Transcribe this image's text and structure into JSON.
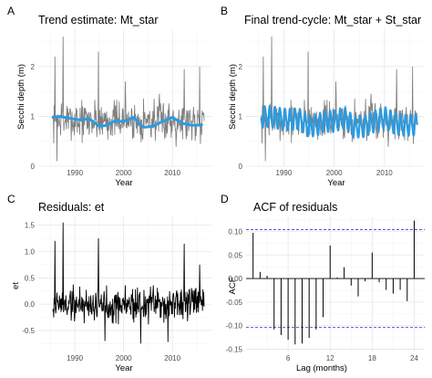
{
  "chart_data": [
    {
      "id": "A",
      "letter": "A",
      "type": "line",
      "title": "Trend estimate: Mt_star",
      "xlabel": "Year",
      "ylabel": "Secchi depth (m)",
      "xlim": [
        1982.5,
        2018
      ],
      "ylim": [
        0,
        2.75
      ],
      "xticks": [
        1990,
        2000,
        2010
      ],
      "yticks": [
        0,
        1,
        2
      ],
      "series": [
        {
          "role": "raw",
          "color": "#7f7f7f",
          "seed": 7,
          "start": 1985.5,
          "end": 2016.5,
          "base": 0.92,
          "amp": 0.35,
          "spikes": [
            [
              1987.6,
              2.6
            ],
            [
              1985.9,
              2.2
            ],
            [
              1994.8,
              2.3
            ],
            [
              2012.4,
              1.95
            ],
            [
              2015.6,
              2.0
            ],
            [
              2000.3,
              1.7
            ],
            [
              1986.3,
              0.1
            ]
          ]
        },
        {
          "role": "trend",
          "color": "#2b9be0",
          "x": [
            1985.5,
            1987,
            1989,
            1991,
            1993,
            1995,
            1996.5,
            1998,
            2000,
            2002,
            2004,
            2006,
            2008,
            2010,
            2012,
            2014,
            2016
          ],
          "y": [
            0.98,
            1.0,
            0.96,
            0.93,
            0.95,
            0.8,
            0.82,
            0.9,
            0.9,
            0.98,
            0.78,
            0.8,
            0.9,
            0.98,
            0.86,
            0.82,
            0.83
          ]
        }
      ]
    },
    {
      "id": "B",
      "letter": "B",
      "type": "line",
      "title": "Final trend-cycle: Mt_star + St_star",
      "xlabel": "Year",
      "ylabel": "Secchi depth (m)",
      "xlim": [
        1982.5,
        2018
      ],
      "ylim": [
        0,
        2.75
      ],
      "xticks": [
        1990,
        2000,
        2010
      ],
      "yticks": [
        0,
        1,
        2
      ],
      "series": [
        {
          "role": "raw",
          "color": "#7f7f7f",
          "seed": 7,
          "start": 1985.5,
          "end": 2016.5,
          "base": 0.92,
          "amp": 0.35,
          "spikes": [
            [
              1987.6,
              2.6
            ],
            [
              1985.9,
              2.2
            ],
            [
              1994.8,
              2.3
            ],
            [
              2012.4,
              1.95
            ],
            [
              2015.6,
              2.0
            ],
            [
              2000.3,
              1.7
            ],
            [
              1986.3,
              0.1
            ]
          ]
        },
        {
          "role": "seasonal",
          "color": "#2b9be0",
          "start": 1985.5,
          "end": 2016.5,
          "amp": 0.2,
          "trend_x": [
            1985.5,
            1987,
            1989,
            1991,
            1993,
            1995,
            1996.5,
            1998,
            2000,
            2002,
            2004,
            2006,
            2008,
            2010,
            2012,
            2014,
            2016
          ],
          "trend_y": [
            0.98,
            1.0,
            0.96,
            0.93,
            0.95,
            0.8,
            0.82,
            0.9,
            0.9,
            0.98,
            0.78,
            0.8,
            0.9,
            0.98,
            0.86,
            0.82,
            0.83
          ]
        }
      ]
    },
    {
      "id": "C",
      "letter": "C",
      "type": "line",
      "title": "Residuals: et",
      "xlabel": "Year",
      "ylabel": "et",
      "xlim": [
        1982.5,
        2018
      ],
      "ylim": [
        -0.9,
        1.65
      ],
      "xticks": [
        1990,
        2000,
        2010
      ],
      "yticks": [
        -0.5,
        0.0,
        0.5,
        1.0,
        1.5
      ],
      "yticklabels": [
        "-0.5",
        "0.0",
        "0.5",
        "1.0",
        "1.5"
      ],
      "series": [
        {
          "role": "resid",
          "color": "#000000",
          "seed": 19,
          "start": 1985.5,
          "end": 2016.5,
          "amp": 0.27,
          "spikes": [
            [
              1987.6,
              1.55
            ],
            [
              1985.9,
              1.2
            ],
            [
              1994.8,
              1.25
            ],
            [
              2012.4,
              1.15
            ],
            [
              2015.6,
              0.75
            ],
            [
              2003.5,
              -0.75
            ],
            [
              1996.2,
              -0.7
            ],
            [
              2009.1,
              -0.72
            ]
          ]
        }
      ]
    },
    {
      "id": "D",
      "letter": "D",
      "type": "bar",
      "title": "ACF of residuals",
      "xlabel": "Lag (months)",
      "ylabel": "ACF",
      "xlim": [
        0,
        25.5
      ],
      "ylim": [
        -0.155,
        0.13
      ],
      "xticks": [
        6,
        12,
        18,
        24
      ],
      "yticks": [
        -0.15,
        -0.1,
        -0.05,
        0.0,
        0.05,
        0.1
      ],
      "yticklabels": [
        "-0.15",
        "-0.10",
        "-0.05",
        "0.00",
        "0.05",
        "0.10"
      ],
      "ci": 0.104,
      "lags": [
        1,
        2,
        3,
        4,
        5,
        6,
        7,
        8,
        9,
        10,
        11,
        12,
        13,
        14,
        15,
        16,
        17,
        18,
        19,
        20,
        21,
        22,
        23,
        24,
        25
      ],
      "values": [
        0.097,
        0.014,
        0.006,
        -0.108,
        -0.12,
        -0.13,
        -0.14,
        -0.138,
        -0.126,
        -0.108,
        -0.082,
        0.07,
        0.002,
        0.024,
        -0.015,
        -0.038,
        -0.006,
        0.055,
        -0.008,
        -0.024,
        -0.032,
        -0.024,
        -0.048,
        0.123,
        0.0
      ]
    }
  ]
}
